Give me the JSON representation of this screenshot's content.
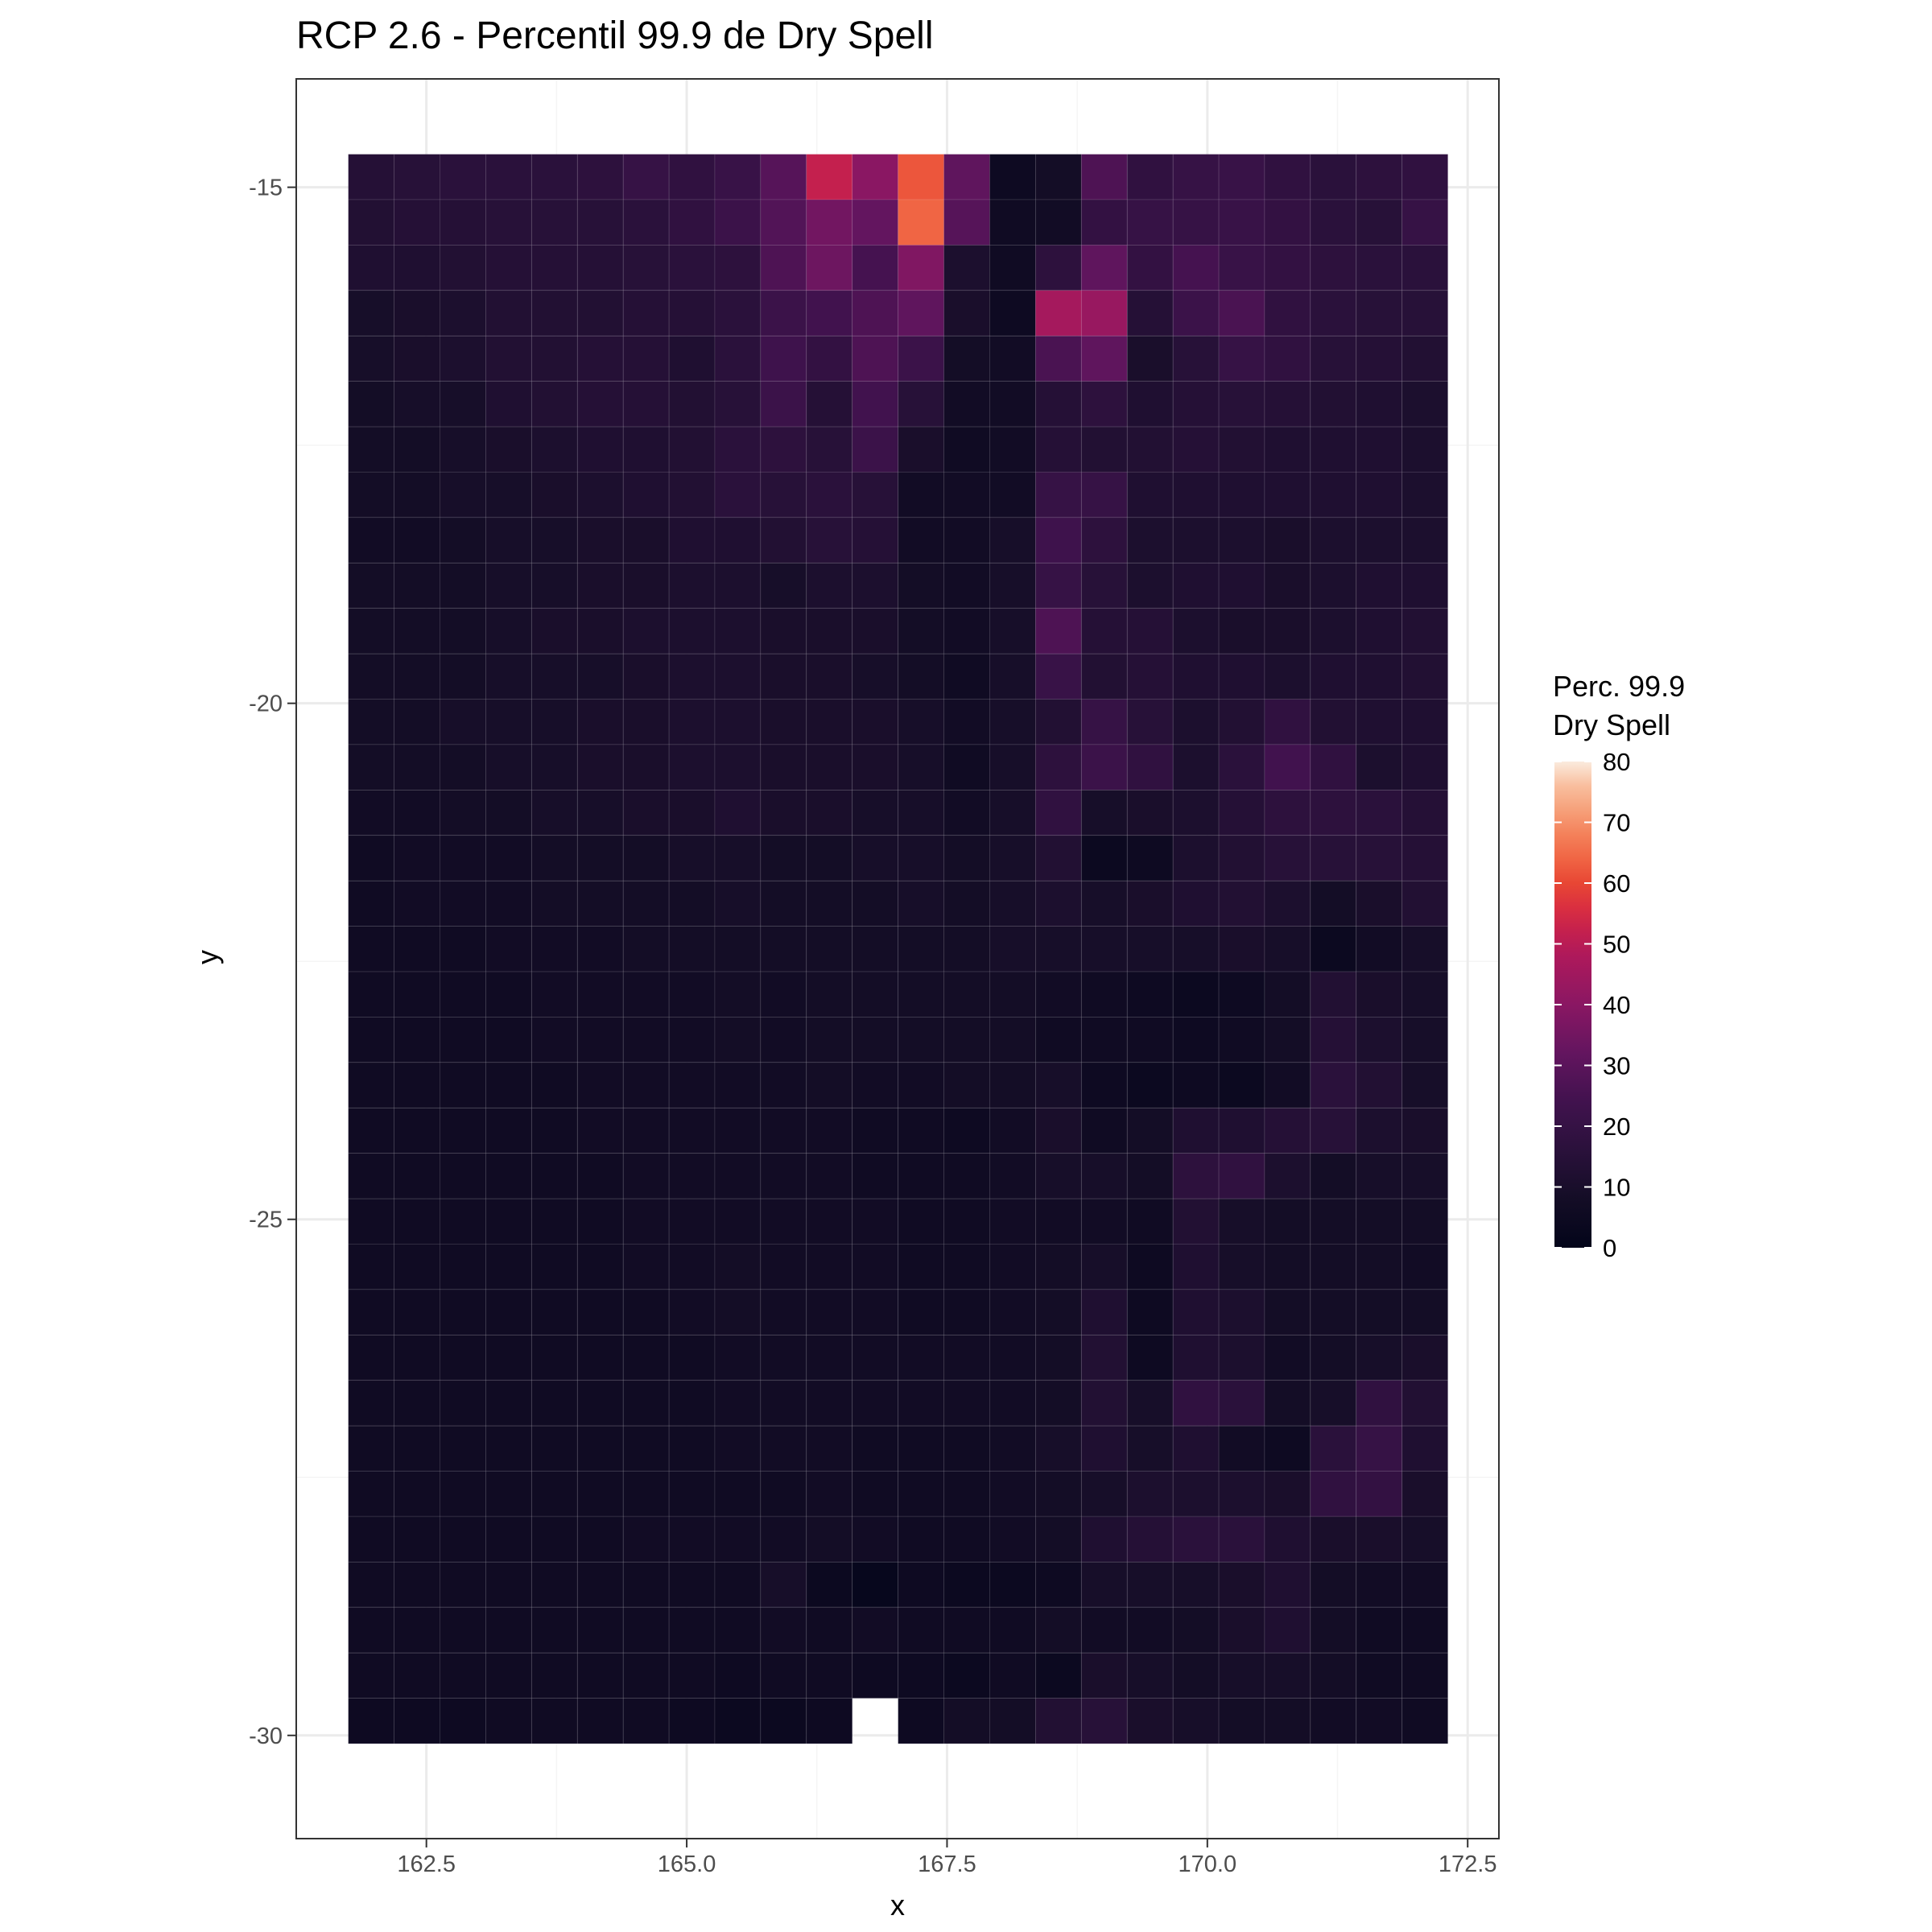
{
  "chart_data": {
    "type": "heatmap",
    "title": "RCP 2.6 - Percentil 99.9 de Dry Spell",
    "xlabel": "x",
    "ylabel": "y",
    "xlim": [
      161.25,
      172.8
    ],
    "ylim": [
      -31.0,
      -13.95
    ],
    "x_ticks": [
      162.5,
      165.0,
      167.5,
      170.0,
      172.5
    ],
    "x_tick_labels": [
      "162.5",
      "165.0",
      "167.5",
      "170.0",
      "172.5"
    ],
    "y_ticks": [
      -15,
      -20,
      -25,
      -30
    ],
    "y_tick_labels": [
      "-15",
      "-20",
      "-25",
      "-30"
    ],
    "x_centers": [
      161.97,
      162.41,
      162.85,
      163.29,
      163.73,
      164.17,
      164.61,
      165.05,
      165.49,
      165.93,
      166.37,
      166.81,
      167.25,
      167.69,
      168.13,
      168.57,
      169.01,
      169.45,
      169.89,
      170.33,
      170.77,
      171.21,
      171.65,
      172.09
    ],
    "y_centers": [
      -14.9,
      -15.34,
      -15.78,
      -16.22,
      -16.66,
      -17.1,
      -17.54,
      -17.98,
      -18.42,
      -18.86,
      -19.3,
      -19.74,
      -20.18,
      -20.62,
      -21.06,
      -21.5,
      -21.94,
      -22.38,
      -22.82,
      -23.26,
      -23.7,
      -24.14,
      -24.58,
      -25.02,
      -25.46,
      -25.9,
      -26.34,
      -26.78,
      -27.22,
      -27.66,
      -28.1,
      -28.54,
      -28.98,
      -29.42,
      -29.86
    ],
    "z": [
      [
        14,
        15,
        16,
        16,
        16,
        17,
        20,
        18,
        21,
        29,
        52,
        40,
        62,
        31,
        5,
        8,
        27,
        18,
        20,
        21,
        18,
        16,
        17,
        18
      ],
      [
        13,
        14,
        14,
        15,
        15,
        15,
        16,
        18,
        22,
        28,
        35,
        32,
        64,
        29,
        6,
        7,
        19,
        20,
        20,
        21,
        19,
        16,
        15,
        20
      ],
      [
        12,
        12,
        13,
        14,
        14,
        14,
        15,
        16,
        17,
        27,
        34,
        25,
        38,
        11,
        6,
        17,
        31,
        19,
        25,
        21,
        19,
        17,
        16,
        16
      ],
      [
        9,
        10,
        11,
        13,
        13,
        13,
        14,
        14,
        16,
        22,
        24,
        27,
        31,
        10,
        5,
        46,
        43,
        14,
        22,
        26,
        18,
        16,
        15,
        15
      ],
      [
        9,
        10,
        11,
        13,
        13,
        14,
        14,
        12,
        16,
        23,
        19,
        27,
        22,
        8,
        7,
        26,
        31,
        10,
        15,
        20,
        18,
        15,
        14,
        13
      ],
      [
        8,
        9,
        9,
        12,
        13,
        14,
        14,
        13,
        15,
        22,
        14,
        24,
        15,
        7,
        7,
        14,
        17,
        12,
        14,
        15,
        14,
        13,
        12,
        11
      ],
      [
        8,
        8,
        9,
        10,
        11,
        12,
        12,
        13,
        16,
        17,
        15,
        22,
        10,
        6,
        7,
        14,
        13,
        13,
        14,
        13,
        12,
        12,
        12,
        11
      ],
      [
        8,
        8,
        9,
        9,
        10,
        11,
        12,
        13,
        16,
        15,
        16,
        15,
        7,
        7,
        7,
        20,
        20,
        12,
        12,
        12,
        12,
        12,
        12,
        11
      ],
      [
        7,
        7,
        8,
        9,
        9,
        10,
        10,
        12,
        12,
        13,
        15,
        14,
        7,
        7,
        9,
        23,
        17,
        11,
        11,
        11,
        10,
        11,
        11,
        11
      ],
      [
        8,
        8,
        8,
        9,
        9,
        10,
        10,
        11,
        11,
        9,
        11,
        11,
        8,
        7,
        9,
        20,
        15,
        11,
        12,
        12,
        10,
        11,
        12,
        12
      ],
      [
        8,
        8,
        8,
        9,
        10,
        10,
        11,
        11,
        11,
        10,
        10,
        10,
        8,
        7,
        9,
        27,
        14,
        14,
        11,
        10,
        10,
        11,
        12,
        13
      ],
      [
        8,
        8,
        8,
        9,
        9,
        9,
        10,
        11,
        11,
        10,
        10,
        9,
        8,
        6,
        9,
        21,
        13,
        14,
        12,
        12,
        11,
        12,
        12,
        13
      ],
      [
        8,
        8,
        9,
        9,
        9,
        10,
        10,
        11,
        11,
        10,
        10,
        10,
        9,
        7,
        9,
        13,
        20,
        15,
        11,
        13,
        18,
        13,
        12,
        12
      ],
      [
        8,
        8,
        8,
        9,
        9,
        10,
        10,
        11,
        11,
        10,
        10,
        10,
        9,
        6,
        9,
        17,
        22,
        18,
        11,
        16,
        24,
        18,
        11,
        12
      ],
      [
        7,
        7,
        8,
        8,
        9,
        9,
        10,
        10,
        12,
        10,
        10,
        9,
        9,
        7,
        9,
        18,
        9,
        10,
        11,
        14,
        17,
        17,
        16,
        14
      ],
      [
        6,
        7,
        7,
        7,
        8,
        8,
        8,
        9,
        9,
        8,
        8,
        9,
        9,
        8,
        9,
        13,
        4,
        5,
        11,
        13,
        15,
        15,
        15,
        14
      ],
      [
        6,
        7,
        7,
        7,
        8,
        8,
        8,
        8,
        9,
        8,
        8,
        8,
        9,
        8,
        9,
        11,
        9,
        10,
        12,
        13,
        11,
        8,
        10,
        13
      ],
      [
        6,
        6,
        6,
        7,
        7,
        7,
        8,
        8,
        8,
        8,
        8,
        8,
        8,
        8,
        9,
        9,
        9,
        9,
        9,
        10,
        9,
        4,
        7,
        9
      ],
      [
        6,
        6,
        6,
        6,
        7,
        7,
        7,
        7,
        8,
        7,
        8,
        8,
        8,
        8,
        8,
        7,
        6,
        5,
        4,
        5,
        8,
        13,
        10,
        9
      ],
      [
        6,
        6,
        6,
        6,
        7,
        7,
        7,
        7,
        8,
        7,
        8,
        8,
        8,
        8,
        8,
        6,
        6,
        6,
        5,
        6,
        8,
        14,
        11,
        9
      ],
      [
        6,
        6,
        6,
        6,
        6,
        7,
        7,
        7,
        7,
        7,
        8,
        7,
        7,
        8,
        8,
        9,
        5,
        4,
        5,
        4,
        7,
        16,
        13,
        9
      ],
      [
        6,
        6,
        6,
        6,
        6,
        7,
        7,
        7,
        7,
        7,
        7,
        6,
        6,
        5,
        7,
        10,
        6,
        8,
        12,
        12,
        14,
        15,
        11,
        10
      ],
      [
        6,
        6,
        6,
        6,
        6,
        6,
        7,
        7,
        7,
        7,
        7,
        6,
        6,
        6,
        7,
        9,
        9,
        8,
        17,
        18,
        11,
        8,
        9,
        9
      ],
      [
        6,
        6,
        6,
        6,
        6,
        6,
        7,
        7,
        7,
        7,
        7,
        7,
        6,
        6,
        7,
        7,
        7,
        6,
        13,
        9,
        8,
        8,
        8,
        8
      ],
      [
        6,
        6,
        6,
        6,
        6,
        6,
        7,
        7,
        8,
        7,
        7,
        7,
        6,
        6,
        7,
        8,
        9,
        5,
        12,
        9,
        8,
        8,
        8,
        7
      ],
      [
        6,
        6,
        6,
        6,
        6,
        6,
        6,
        7,
        8,
        7,
        7,
        7,
        6,
        6,
        7,
        8,
        12,
        5,
        12,
        11,
        8,
        8,
        8,
        8
      ],
      [
        6,
        6,
        6,
        6,
        6,
        6,
        6,
        6,
        7,
        7,
        7,
        7,
        7,
        7,
        7,
        8,
        13,
        5,
        12,
        11,
        7,
        8,
        9,
        10
      ],
      [
        6,
        6,
        6,
        6,
        6,
        6,
        6,
        6,
        7,
        7,
        7,
        7,
        7,
        7,
        7,
        8,
        13,
        9,
        18,
        16,
        8,
        9,
        18,
        13
      ],
      [
        6,
        6,
        6,
        6,
        6,
        6,
        6,
        6,
        7,
        7,
        7,
        6,
        6,
        6,
        7,
        9,
        12,
        9,
        12,
        7,
        5,
        16,
        20,
        12
      ],
      [
        6,
        6,
        6,
        6,
        6,
        6,
        6,
        6,
        6,
        6,
        7,
        6,
        6,
        6,
        7,
        8,
        9,
        11,
        11,
        11,
        10,
        18,
        19,
        10
      ],
      [
        6,
        6,
        6,
        6,
        6,
        6,
        7,
        7,
        7,
        7,
        8,
        7,
        6,
        6,
        7,
        8,
        12,
        14,
        16,
        16,
        12,
        10,
        10,
        9
      ],
      [
        6,
        6,
        6,
        6,
        6,
        6,
        6,
        6,
        6,
        9,
        4,
        2,
        5,
        4,
        4,
        5,
        9,
        9,
        9,
        10,
        12,
        8,
        7,
        7
      ],
      [
        6,
        6,
        6,
        6,
        6,
        6,
        6,
        6,
        6,
        7,
        6,
        7,
        6,
        6,
        6,
        8,
        7,
        7,
        8,
        10,
        12,
        8,
        6,
        6
      ],
      [
        6,
        6,
        6,
        6,
        6,
        6,
        6,
        6,
        5,
        6,
        6,
        5,
        5,
        4,
        6,
        4,
        10,
        9,
        8,
        9,
        9,
        8,
        6,
        6
      ],
      [
        5,
        5,
        5,
        6,
        6,
        6,
        6,
        5,
        4,
        4,
        5,
        null,
        5,
        8,
        8,
        13,
        15,
        10,
        9,
        8,
        8,
        7,
        7,
        6
      ]
    ],
    "legend": {
      "title_line1": "Perc. 99.9",
      "title_line2": "Dry Spell",
      "min": 0,
      "max": 80,
      "ticks": [
        0,
        10,
        20,
        30,
        40,
        50,
        60,
        70,
        80
      ],
      "tick_labels": [
        "0",
        "10",
        "20",
        "30",
        "40",
        "50",
        "60",
        "70",
        "80"
      ],
      "placement": "right"
    },
    "colormap": "rocket",
    "grid": true,
    "colors": {
      "panel_border": "#333333",
      "grid_major": "#ebebeb",
      "grid_minor": "#f5f5f5",
      "text": "#000000",
      "tick_text": "#4d4d4d"
    }
  }
}
